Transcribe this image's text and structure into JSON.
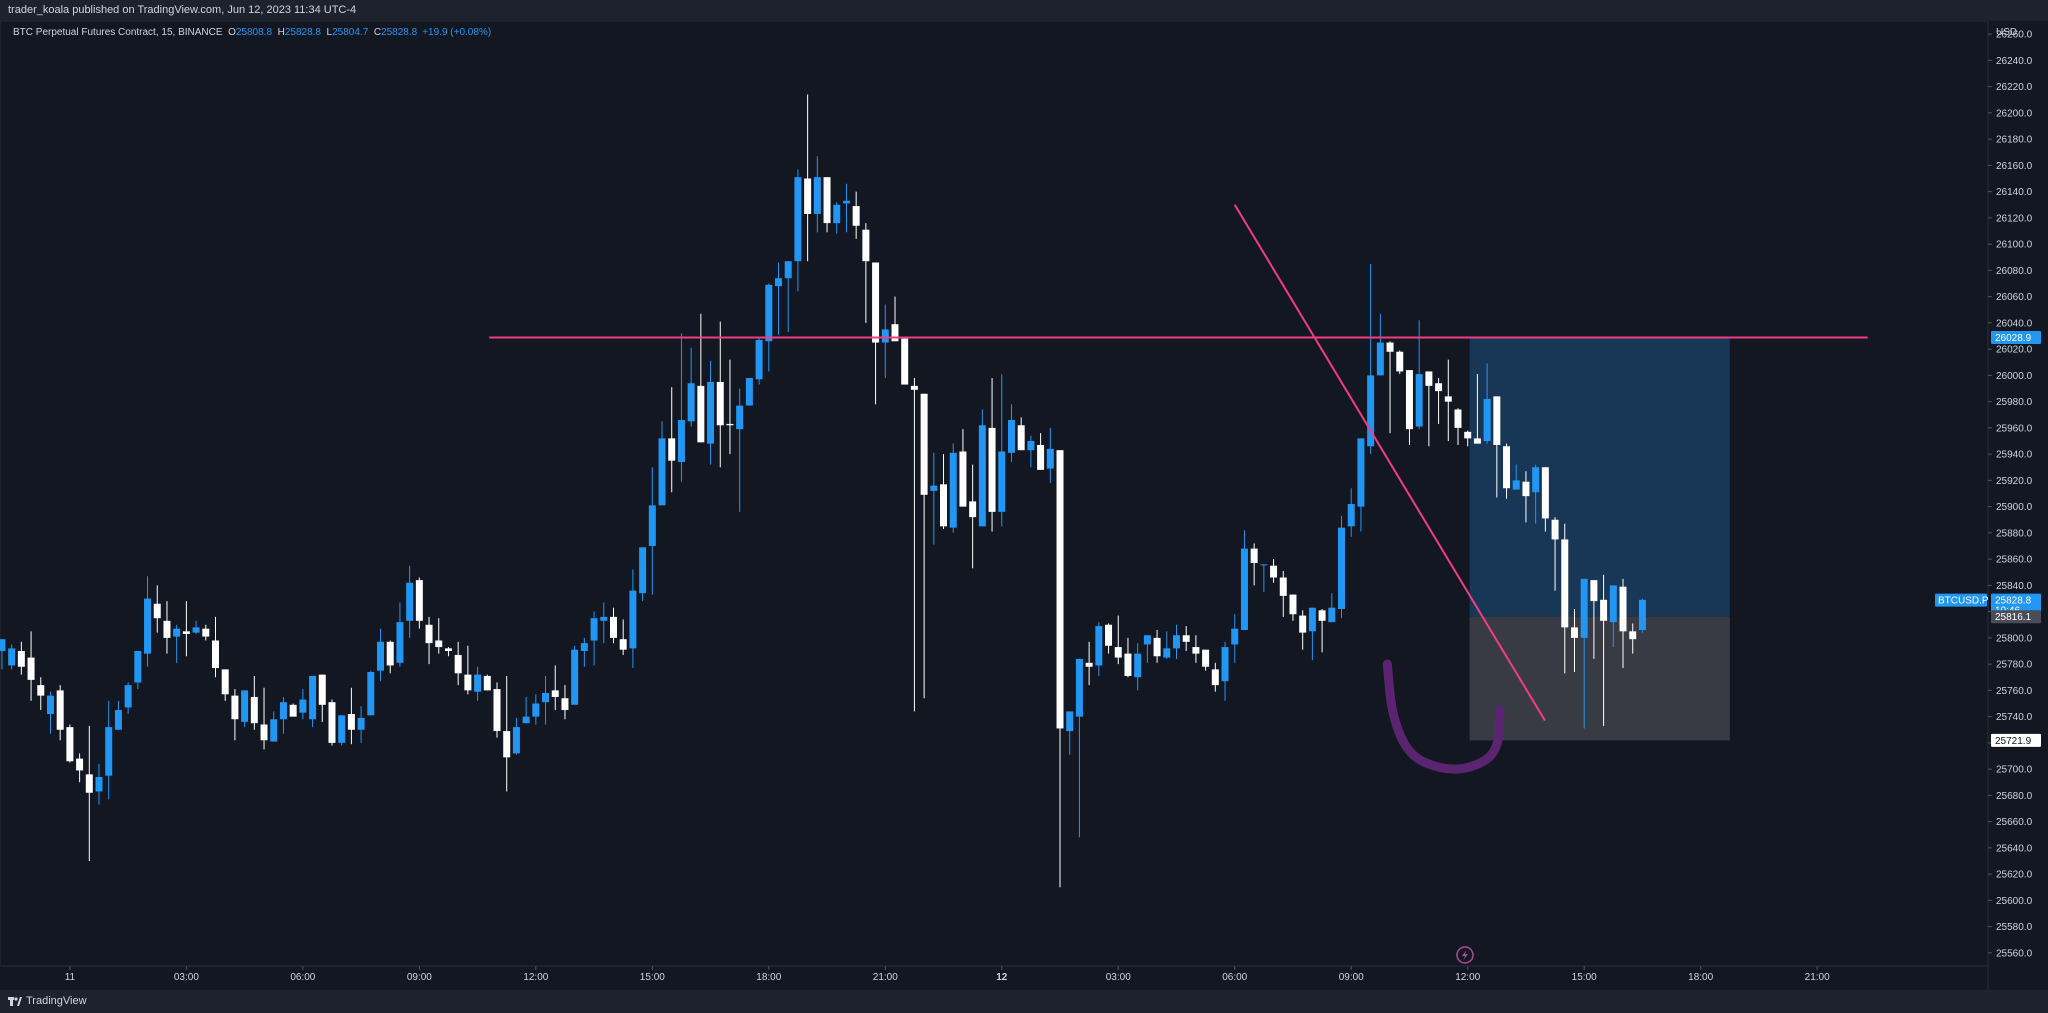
{
  "header": {
    "publisher_text": "trader_koala published on TradingView.com, Jun 12, 2023 11:34 UTC-4"
  },
  "legend": {
    "symbol_text": "BTC Perpetual Futures Contract, 15, BINANCE",
    "open_label": "O",
    "open_value": "25808.8",
    "high_label": "H",
    "high_value": "25828.8",
    "low_label": "L",
    "low_value": "25804.7",
    "close_label": "C",
    "close_value": "25828.8",
    "change_text": "+19.9 (+0.08%)"
  },
  "footer": {
    "brand_text": "TradingView"
  },
  "colors": {
    "background": "#131722",
    "bar_bg": "#1e222d",
    "up_candle": "#2196f3",
    "down_candle": "#ffffff",
    "resistance_line": "#f23d81",
    "trend_line": "#f23d81",
    "target_zone": "#1a3a5c",
    "stop_zone": "#3b3d47",
    "drawing": "#5b2470",
    "badge_blue": "#2196f3",
    "text": "#d1d4dc"
  },
  "chart_data": {
    "type": "candlestick",
    "title": "BTC Perpetual Futures Contract, 15, BINANCE",
    "currency_label": "USD",
    "ylim": [
      25550,
      26270
    ],
    "y_ticks": [
      "26260.0",
      "26240.0",
      "26220.0",
      "26200.0",
      "26180.0",
      "26160.0",
      "26140.0",
      "26120.0",
      "26100.0",
      "26080.0",
      "26060.0",
      "26040.0",
      "26020.0",
      "26000.0",
      "25980.0",
      "25960.0",
      "25940.0",
      "25920.0",
      "25900.0",
      "25880.0",
      "25860.0",
      "25840.0",
      "25820.0",
      "25800.0",
      "25780.0",
      "25760.0",
      "25740.0",
      "25720.0",
      "25700.0",
      "25680.0",
      "25660.0",
      "25640.0",
      "25620.0",
      "25600.0",
      "25580.0",
      "25560.0"
    ],
    "x_ticks": [
      {
        "label": "11",
        "hour": 0,
        "bold": false
      },
      {
        "label": "03:00",
        "hour": 3,
        "bold": false
      },
      {
        "label": "06:00",
        "hour": 6,
        "bold": false
      },
      {
        "label": "09:00",
        "hour": 9,
        "bold": false
      },
      {
        "label": "12:00",
        "hour": 12,
        "bold": false
      },
      {
        "label": "15:00",
        "hour": 15,
        "bold": false
      },
      {
        "label": "18:00",
        "hour": 18,
        "bold": false
      },
      {
        "label": "21:00",
        "hour": 21,
        "bold": false
      },
      {
        "label": "12",
        "hour": 24,
        "bold": true
      },
      {
        "label": "03:00",
        "hour": 27,
        "bold": false
      },
      {
        "label": "06:00",
        "hour": 30,
        "bold": false
      },
      {
        "label": "09:00",
        "hour": 33,
        "bold": false
      },
      {
        "label": "12:00",
        "hour": 36,
        "bold": false
      },
      {
        "label": "15:00",
        "hour": 39,
        "bold": false
      },
      {
        "label": "18:00",
        "hour": 42,
        "bold": false
      },
      {
        "label": "21:00",
        "hour": 45,
        "bold": false
      }
    ],
    "x_range_hours": [
      -1.8,
      49.4
    ],
    "first_candle_hour": -1.75,
    "candle_interval_hours": 0.25,
    "candles": [
      [
        25790,
        25799,
        25795,
        25776
      ],
      [
        25779,
        25792,
        25795,
        25776
      ],
      [
        25790,
        25778,
        25797,
        25772
      ],
      [
        25785,
        25768,
        25805,
        25752
      ],
      [
        25764,
        25756,
        25770,
        25745
      ],
      [
        25742,
        25756,
        25759,
        25727
      ],
      [
        25760,
        25730,
        25764,
        25722
      ],
      [
        25732,
        25706,
        25734,
        25705
      ],
      [
        25708,
        25699,
        25712,
        25690
      ],
      [
        25696,
        25682,
        25733,
        25630
      ],
      [
        25683,
        25694,
        25704,
        25673
      ],
      [
        25695,
        25732,
        25752,
        25677
      ],
      [
        25730,
        25745,
        25752,
        25735
      ],
      [
        25747,
        25764,
        25766,
        25742
      ],
      [
        25766,
        25790,
        25790,
        25761
      ],
      [
        25788,
        25830,
        25847,
        25778
      ],
      [
        25826,
        25815,
        25840,
        25804
      ],
      [
        25813,
        25800,
        25828,
        25788
      ],
      [
        25801,
        25807,
        25810,
        25781
      ],
      [
        25805,
        25803,
        25828,
        25786
      ],
      [
        25804,
        25808,
        25813,
        25803
      ],
      [
        25807,
        25801,
        25810,
        25798
      ],
      [
        25798,
        25777,
        25816,
        25770
      ],
      [
        25776,
        25757,
        25776,
        25752
      ],
      [
        25756,
        25738,
        25761,
        25722
      ],
      [
        25736,
        25760,
        25760,
        25732
      ],
      [
        25755,
        25735,
        25771,
        25730
      ],
      [
        25734,
        25722,
        25762,
        25715
      ],
      [
        25721,
        25738,
        25744,
        25729
      ],
      [
        25738,
        25751,
        25755,
        25727
      ],
      [
        25749,
        25740,
        25750,
        25740
      ],
      [
        25743,
        25753,
        25761,
        25738
      ],
      [
        25738,
        25771,
        25768,
        25732
      ],
      [
        25772,
        25749,
        25770,
        25736
      ],
      [
        25751,
        25720,
        25753,
        25718
      ],
      [
        25720,
        25741,
        25741,
        25718
      ],
      [
        25742,
        25730,
        25762,
        25719
      ],
      [
        25730,
        25739,
        25748,
        25720
      ],
      [
        25741,
        25774,
        25775,
        25741
      ],
      [
        25775,
        25797,
        25807,
        25767
      ],
      [
        25797,
        25779,
        25798,
        25773
      ],
      [
        25781,
        25812,
        25827,
        25778
      ],
      [
        25813,
        25842,
        25855,
        25800
      ],
      [
        25844,
        25813,
        25846,
        25807
      ],
      [
        25810,
        25796,
        25816,
        25780
      ],
      [
        25798,
        25793,
        25815,
        25788
      ],
      [
        25792,
        25790,
        25793,
        25786
      ],
      [
        25787,
        25773,
        25797,
        25764
      ],
      [
        25772,
        25760,
        25794,
        25757
      ],
      [
        25759,
        25772,
        25778,
        25752
      ],
      [
        25771,
        25760,
        25772,
        25760
      ],
      [
        25761,
        25729,
        25766,
        25724
      ],
      [
        25729,
        25709,
        25771,
        25683
      ],
      [
        25712,
        25732,
        25739,
        25711
      ],
      [
        25735,
        25740,
        25755,
        25744
      ],
      [
        25740,
        25750,
        25757,
        25734
      ],
      [
        25751,
        25758,
        25771,
        25734
      ],
      [
        25760,
        25755,
        25779,
        25745
      ],
      [
        25754,
        25745,
        25764,
        25738
      ],
      [
        25749,
        25791,
        25794,
        25753
      ],
      [
        25790,
        25796,
        25800,
        25778
      ],
      [
        25798,
        25815,
        25820,
        25779
      ],
      [
        25813,
        25816,
        25827,
        25796
      ],
      [
        25816,
        25800,
        25823,
        25796
      ],
      [
        25799,
        25791,
        25814,
        25787
      ],
      [
        25792,
        25836,
        25852,
        25777
      ],
      [
        25834,
        25869,
        25869,
        25828
      ],
      [
        25870,
        25901,
        25930,
        25833
      ],
      [
        25901,
        25952,
        25965,
        25905
      ],
      [
        25952,
        25935,
        25991,
        25911
      ],
      [
        25934,
        25966,
        26032,
        25919
      ],
      [
        25965,
        25994,
        26021,
        25961
      ],
      [
        25992,
        25949,
        26047,
        25952
      ],
      [
        25948,
        25995,
        26011,
        25932
      ],
      [
        25995,
        25962,
        26041,
        25930
      ],
      [
        25963,
        25962,
        26012,
        25940
      ],
      [
        25959,
        25977,
        25990,
        25896
      ],
      [
        25977,
        25998,
        25996,
        25982
      ],
      [
        25997,
        26027,
        26029,
        25993
      ],
      [
        26026,
        26069,
        26070,
        26003
      ],
      [
        26068,
        26074,
        26086,
        26031
      ],
      [
        26074,
        26087,
        26084,
        26033
      ],
      [
        26087,
        26151,
        26157,
        26064
      ],
      [
        26150,
        26123,
        26214,
        26087
      ],
      [
        26123,
        26151,
        26167,
        26109
      ],
      [
        26151,
        26116,
        26144,
        26109
      ],
      [
        26116,
        26130,
        26132,
        26108
      ],
      [
        26131,
        26133,
        26146,
        26109
      ],
      [
        26129,
        26114,
        26140,
        26104
      ],
      [
        26111,
        26087,
        26116,
        26040
      ],
      [
        26086,
        26025,
        26063,
        25978
      ],
      [
        26025,
        26035,
        26054,
        25998
      ],
      [
        26039,
        26026,
        26060,
        26030
      ],
      [
        26028,
        25993,
        26026,
        26043
      ],
      [
        25992,
        25989,
        25998,
        25744
      ],
      [
        25986,
        25909,
        25981,
        25754
      ],
      [
        25912,
        25916,
        25941,
        25871
      ],
      [
        25917,
        25885,
        25940,
        25883
      ],
      [
        25884,
        25941,
        25948,
        25880
      ],
      [
        25942,
        25900,
        25959,
        25901
      ],
      [
        25904,
        25892,
        25932,
        25853
      ],
      [
        25885,
        25962,
        25974,
        25885
      ],
      [
        25960,
        25896,
        25998,
        25881
      ],
      [
        25896,
        25942,
        26001,
        25885
      ],
      [
        25941,
        25966,
        25978,
        25934
      ],
      [
        25962,
        25943,
        25968,
        25943
      ],
      [
        25943,
        25950,
        25954,
        25930
      ],
      [
        25947,
        25928,
        25956,
        25930
      ],
      [
        25929,
        25944,
        25960,
        25918
      ],
      [
        25943,
        25731,
        25943,
        25610
      ],
      [
        25729,
        25744,
        25743,
        25711
      ],
      [
        25740,
        25784,
        25754,
        25648
      ],
      [
        25781,
        25778,
        25797,
        25764
      ],
      [
        25779,
        25809,
        25812,
        25771
      ],
      [
        25810,
        25794,
        25811,
        25788
      ],
      [
        25793,
        25785,
        25817,
        25780
      ],
      [
        25788,
        25771,
        25800,
        25770
      ],
      [
        25770,
        25788,
        25796,
        25760
      ],
      [
        25795,
        25802,
        25800,
        25781
      ],
      [
        25800,
        25786,
        25806,
        25781
      ],
      [
        25785,
        25792,
        25805,
        25784
      ],
      [
        25792,
        25802,
        25810,
        25784
      ],
      [
        25802,
        25797,
        25809,
        25790
      ],
      [
        25793,
        25788,
        25802,
        25781
      ],
      [
        25791,
        25778,
        25786,
        25775
      ],
      [
        25776,
        25764,
        25781,
        25759
      ],
      [
        25767,
        25793,
        25797,
        25752
      ],
      [
        25795,
        25807,
        25818,
        25781
      ],
      [
        25806,
        25868,
        25882,
        25808
      ],
      [
        25868,
        25857,
        25872,
        25840
      ],
      [
        25856,
        25856,
        25856,
        25835
      ],
      [
        25855,
        25846,
        25860,
        25842
      ],
      [
        25846,
        25832,
        25851,
        25816
      ],
      [
        25833,
        25818,
        25831,
        25813
      ],
      [
        25817,
        25804,
        25821,
        25791
      ],
      [
        25805,
        25823,
        25821,
        25783
      ],
      [
        25821,
        25813,
        25822,
        25789
      ],
      [
        25812,
        25823,
        25834,
        25812
      ],
      [
        25822,
        25884,
        25893,
        25815
      ],
      [
        25885,
        25902,
        25914,
        25877
      ],
      [
        25900,
        25952,
        25947,
        25881
      ],
      [
        25946,
        26000,
        26085,
        25940
      ],
      [
        26000,
        26025,
        26047,
        26000
      ],
      [
        26025,
        26018,
        26026,
        25956
      ],
      [
        26018,
        26003,
        26019,
        26001
      ],
      [
        26004,
        25959,
        26002,
        25947
      ],
      [
        25961,
        26001,
        26042,
        25959
      ],
      [
        26003,
        25992,
        26001,
        25946
      ],
      [
        25994,
        25988,
        25998,
        25963
      ],
      [
        25984,
        25980,
        26012,
        25950
      ],
      [
        25974,
        25960,
        25975,
        25947
      ],
      [
        25957,
        25952,
        25958,
        25946
      ],
      [
        25952,
        25948,
        26001,
        25950
      ],
      [
        25950,
        25982,
        26009,
        25948
      ],
      [
        25984,
        25947,
        25974,
        25907
      ],
      [
        25946,
        25914,
        25948,
        25906
      ],
      [
        25913,
        25920,
        25932,
        25917
      ],
      [
        25919,
        25908,
        25927,
        25888
      ],
      [
        25911,
        25930,
        25932,
        25887
      ],
      [
        25930,
        25891,
        25928,
        25881
      ],
      [
        25890,
        25875,
        25892,
        25836
      ],
      [
        25875,
        25808,
        25887,
        25773
      ],
      [
        25808,
        25800,
        25822,
        25774
      ],
      [
        25800,
        25845,
        25824,
        25731
      ],
      [
        25844,
        25828,
        25841,
        25784
      ],
      [
        25829,
        25813,
        25848,
        25733
      ],
      [
        25812,
        25840,
        25839,
        25793
      ],
      [
        25839,
        25805,
        25845,
        25777
      ],
      [
        25805,
        25799,
        25811,
        25788
      ],
      [
        25806,
        25829,
        25830,
        25804
      ]
    ],
    "horizontal_level": 26028.9,
    "trend_line": [
      [
        30.0,
        26130
      ],
      [
        37.99,
        25737
      ]
    ],
    "target_zone": {
      "hour_start": 36.05,
      "hour_end": 42.75,
      "price_top": 26028.9,
      "price_bottom": 25816.1
    },
    "stop_zone": {
      "hour_start": 36.05,
      "hour_end": 42.75,
      "price_top": 25816.1,
      "price_bottom": 25721.9
    },
    "price_labels": [
      {
        "text": "26028.9",
        "price": 26028.9,
        "style": "blue"
      },
      {
        "text": "25828.8",
        "sub": "10:46",
        "price": 25828.8,
        "style": "blue"
      },
      {
        "text": "25816.1",
        "price": 25816.1,
        "style": "gray"
      },
      {
        "text": "25721.9",
        "price": 25721.9,
        "style": "white"
      }
    ],
    "symbol_tag": "BTCUSD.P",
    "lightning_icon_hour": 35.93,
    "drawing": [
      [
        33.93,
        25780
      ],
      [
        34.05,
        25740
      ],
      [
        34.5,
        25710
      ],
      [
        35.3,
        25700
      ],
      [
        36.03,
        25700
      ],
      [
        36.78,
        25712
      ],
      [
        36.83,
        25745
      ]
    ]
  }
}
